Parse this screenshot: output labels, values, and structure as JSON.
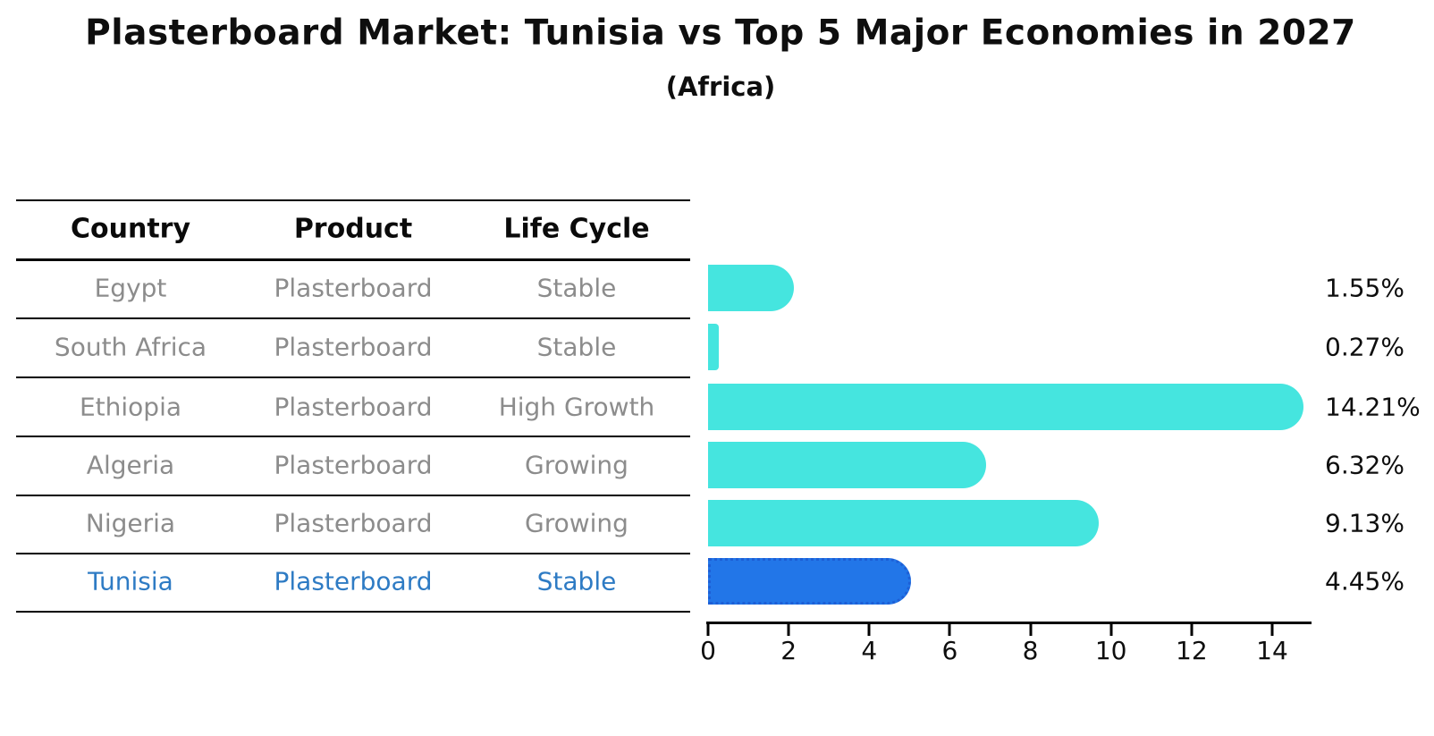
{
  "chart": {
    "title": "Plasterboard Market: Tunisia vs Top 5 Major Economies in 2027",
    "subtitle": "(Africa)"
  },
  "table": {
    "headers": [
      "Country",
      "Product",
      "Life Cycle"
    ],
    "rows": [
      {
        "country": "Egypt",
        "product": "Plasterboard",
        "life_cycle": "Stable"
      },
      {
        "country": "South Africa",
        "product": "Plasterboard",
        "life_cycle": "Stable"
      },
      {
        "country": "Ethiopia",
        "product": "Plasterboard",
        "life_cycle": "High Growth"
      },
      {
        "country": "Algeria",
        "product": "Plasterboard",
        "life_cycle": "Growing"
      },
      {
        "country": "Nigeria",
        "product": "Plasterboard",
        "life_cycle": "Growing"
      },
      {
        "country": "Tunisia",
        "product": "Plasterboard",
        "life_cycle": "Stable"
      }
    ],
    "highlight_row": "Tunisia"
  },
  "chart_data": {
    "type": "bar",
    "orientation": "horizontal",
    "title": "Plasterboard Market: Tunisia vs Top 5 Major Economies in 2027",
    "subtitle": "(Africa)",
    "categories": [
      "Egypt",
      "South Africa",
      "Ethiopia",
      "Algeria",
      "Nigeria",
      "Tunisia"
    ],
    "values": [
      1.55,
      0.27,
      14.21,
      6.32,
      9.13,
      4.45
    ],
    "value_labels": [
      "1.55%",
      "0.27%",
      "14.21%",
      "6.32%",
      "9.13%",
      "4.45%"
    ],
    "xlabel": "",
    "ylabel": "",
    "xlim": [
      0,
      15
    ],
    "x_ticks": [
      0,
      2,
      4,
      6,
      8,
      10,
      12,
      14
    ],
    "grid": false,
    "legend": "none",
    "bar_color": "#45e5df",
    "highlight_color": "#2276e8",
    "highlight_index": 5
  },
  "colors": {
    "background": "#ffffff",
    "bar_cyan": "#45e5df",
    "bar_blue": "#2276e8",
    "highlight_text": "#2e7bc4",
    "table_text": "#8c8c8c",
    "line": "#000000"
  }
}
